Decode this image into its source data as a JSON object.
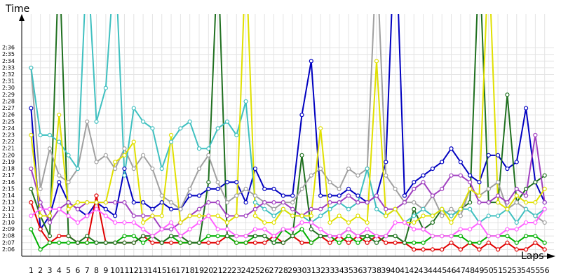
{
  "chart_data": {
    "type": "line",
    "y_label": "Time",
    "x_label": "Laps",
    "grid": true,
    "x": [
      1,
      2,
      3,
      4,
      5,
      6,
      7,
      8,
      9,
      10,
      11,
      12,
      13,
      14,
      15,
      16,
      17,
      18,
      19,
      20,
      21,
      22,
      23,
      24,
      25,
      26,
      27,
      28,
      29,
      30,
      31,
      32,
      33,
      34,
      35,
      36,
      37,
      38,
      39,
      40,
      41,
      42,
      43,
      44,
      45,
      46,
      47,
      48,
      49,
      50,
      51,
      52,
      53,
      54,
      55,
      56
    ],
    "xlim": [
      0,
      57
    ],
    "xticks": [
      1,
      2,
      3,
      4,
      5,
      6,
      7,
      8,
      9,
      10,
      11,
      12,
      13,
      14,
      15,
      16,
      17,
      18,
      19,
      20,
      21,
      22,
      23,
      24,
      25,
      26,
      27,
      28,
      29,
      30,
      31,
      32,
      33,
      34,
      35,
      36,
      37,
      38,
      39,
      40,
      41,
      42,
      43,
      44,
      45,
      46,
      47,
      48,
      49,
      50,
      51,
      52,
      53,
      54,
      55,
      56
    ],
    "ylim": [
      125,
      161
    ],
    "yticks": [
      {
        "value": 126,
        "label": "2:06"
      },
      {
        "value": 127,
        "label": "2:07"
      },
      {
        "value": 128,
        "label": "2:08"
      },
      {
        "value": 129,
        "label": "2:09"
      },
      {
        "value": 130,
        "label": "2:10"
      },
      {
        "value": 131,
        "label": "2:11"
      },
      {
        "value": 132,
        "label": "2:12"
      },
      {
        "value": 133,
        "label": "2:13"
      },
      {
        "value": 134,
        "label": "2:14"
      },
      {
        "value": 135,
        "label": "2:15"
      },
      {
        "value": 136,
        "label": "2:16"
      },
      {
        "value": 137,
        "label": "2:17"
      },
      {
        "value": 138,
        "label": "2:18"
      },
      {
        "value": 139,
        "label": "2:19"
      },
      {
        "value": 140,
        "label": "2:20"
      },
      {
        "value": 141,
        "label": "2:21"
      },
      {
        "value": 142,
        "label": "2:22"
      },
      {
        "value": 143,
        "label": "2:23"
      },
      {
        "value": 144,
        "label": "2:24"
      },
      {
        "value": 145,
        "label": "2:25"
      },
      {
        "value": 146,
        "label": "2:26"
      },
      {
        "value": 147,
        "label": "2:27"
      },
      {
        "value": 148,
        "label": "2:28"
      },
      {
        "value": 149,
        "label": "2:29"
      },
      {
        "value": 150,
        "label": "2:30"
      },
      {
        "value": 151,
        "label": "2:31"
      },
      {
        "value": 152,
        "label": "2:32"
      },
      {
        "value": 153,
        "label": "2:33"
      },
      {
        "value": 154,
        "label": "2:34"
      },
      {
        "value": 155,
        "label": "2:35"
      },
      {
        "value": 156,
        "label": "2:36"
      }
    ],
    "series": [
      {
        "color": "#0000c0",
        "values": [
          147,
          129,
          131,
          136,
          133,
          132,
          131,
          133,
          132,
          131,
          138,
          133,
          133,
          132,
          133,
          132,
          132,
          134,
          134,
          135,
          135,
          136,
          136,
          133,
          138,
          135,
          135,
          134,
          134,
          146,
          154,
          134,
          134,
          134,
          135,
          134,
          133,
          134,
          139,
          175,
          134,
          136,
          137,
          138,
          139,
          141,
          139,
          137,
          136,
          140,
          140,
          138,
          139,
          147,
          136,
          133
        ]
      },
      {
        "color": "#e00000",
        "values": [
          133,
          129,
          127,
          128,
          128,
          127,
          127,
          134,
          127,
          127,
          127,
          127,
          128,
          127,
          127,
          127,
          127,
          127,
          127,
          127,
          127,
          128,
          127,
          127,
          127,
          127,
          128,
          127,
          128,
          127,
          127,
          128,
          127,
          128,
          127,
          128,
          127,
          128,
          127,
          127,
          127,
          126,
          126,
          126,
          126,
          127,
          126,
          127,
          126,
          127,
          126,
          127,
          126,
          126,
          127,
          126
        ]
      },
      {
        "color": "#00b000",
        "values": [
          129,
          126,
          127,
          127,
          127,
          127,
          127,
          127,
          127,
          127,
          128,
          128,
          127,
          128,
          127,
          128,
          127,
          127,
          127,
          128,
          128,
          128,
          127,
          127,
          128,
          128,
          127,
          129,
          128,
          129,
          127,
          128,
          128,
          127,
          128,
          127,
          128,
          128,
          128,
          128,
          127,
          127,
          127,
          128,
          128,
          128,
          128,
          127,
          127,
          128,
          128,
          128,
          127,
          128,
          128,
          127
        ]
      },
      {
        "color": "#207020",
        "values": [
          135,
          131,
          128,
          170,
          128,
          127,
          128,
          127,
          127,
          127,
          127,
          127,
          128,
          128,
          127,
          128,
          128,
          127,
          127,
          136,
          170,
          128,
          128,
          128,
          128,
          128,
          127,
          127,
          128,
          140,
          129,
          128,
          128,
          128,
          129,
          128,
          128,
          127,
          128,
          128,
          127,
          132,
          129,
          130,
          132,
          131,
          132,
          133,
          170,
          133,
          133,
          149,
          133,
          135,
          136,
          137
        ]
      },
      {
        "color": "#a0a0a0",
        "values": [
          153,
          135,
          141,
          137,
          136,
          138,
          145,
          139,
          140,
          138,
          141,
          138,
          140,
          138,
          134,
          133,
          132,
          135,
          138,
          140,
          136,
          133,
          134,
          135,
          134,
          133,
          132,
          133,
          133,
          135,
          137,
          138,
          136,
          135,
          138,
          137,
          138,
          170,
          137,
          135,
          133,
          133,
          132,
          134,
          131,
          132,
          131,
          135,
          134,
          135,
          136,
          132,
          133,
          132,
          131,
          130
        ]
      },
      {
        "color": "#40c0c0",
        "values": [
          153,
          143,
          143,
          142,
          140,
          138,
          170,
          145,
          150,
          170,
          137,
          147,
          145,
          144,
          138,
          142,
          144,
          145,
          141,
          141,
          144,
          145,
          143,
          148,
          133,
          132,
          131,
          132,
          131,
          131,
          130,
          131,
          132,
          133,
          132,
          133,
          138,
          132,
          131,
          132,
          130,
          131,
          132,
          131,
          132,
          131,
          132,
          132,
          130,
          131,
          131,
          132,
          130,
          132,
          131,
          132
        ]
      },
      {
        "color": "#a040c0",
        "values": [
          138,
          133,
          130,
          132,
          133,
          132,
          133,
          133,
          133,
          133,
          133,
          131,
          131,
          131,
          129,
          129,
          130,
          131,
          132,
          133,
          133,
          131,
          131,
          131,
          132,
          133,
          133,
          133,
          132,
          131,
          132,
          132,
          133,
          133,
          134,
          133,
          133,
          134,
          132,
          132,
          133,
          135,
          136,
          134,
          135,
          137,
          137,
          136,
          133,
          133,
          134,
          133,
          135,
          134,
          143,
          133
        ]
      },
      {
        "color": "#e0e000",
        "values": [
          143,
          131,
          131,
          146,
          132,
          133,
          133,
          133,
          133,
          139,
          140,
          142,
          130,
          131,
          131,
          143,
          130,
          131,
          131,
          131,
          131,
          130,
          131,
          170,
          131,
          130,
          130,
          132,
          131,
          131,
          131,
          144,
          130,
          131,
          130,
          131,
          130,
          154,
          131,
          132,
          130,
          130,
          131,
          131,
          132,
          130,
          132,
          135,
          134,
          170,
          133,
          132,
          134,
          133,
          133,
          135
        ]
      },
      {
        "color": "#ff60ff",
        "values": [
          131,
          132,
          132,
          132,
          131,
          130,
          131,
          132,
          131,
          130,
          130,
          130,
          129,
          128,
          129,
          130,
          128,
          129,
          130,
          131,
          129,
          129,
          128,
          128,
          129,
          129,
          128,
          129,
          129,
          130,
          130,
          129,
          128,
          128,
          129,
          128,
          129,
          128,
          128,
          130,
          130,
          129,
          129,
          128,
          128,
          128,
          129,
          129,
          130,
          128,
          128,
          129,
          129,
          130,
          130,
          132
        ]
      }
    ]
  }
}
